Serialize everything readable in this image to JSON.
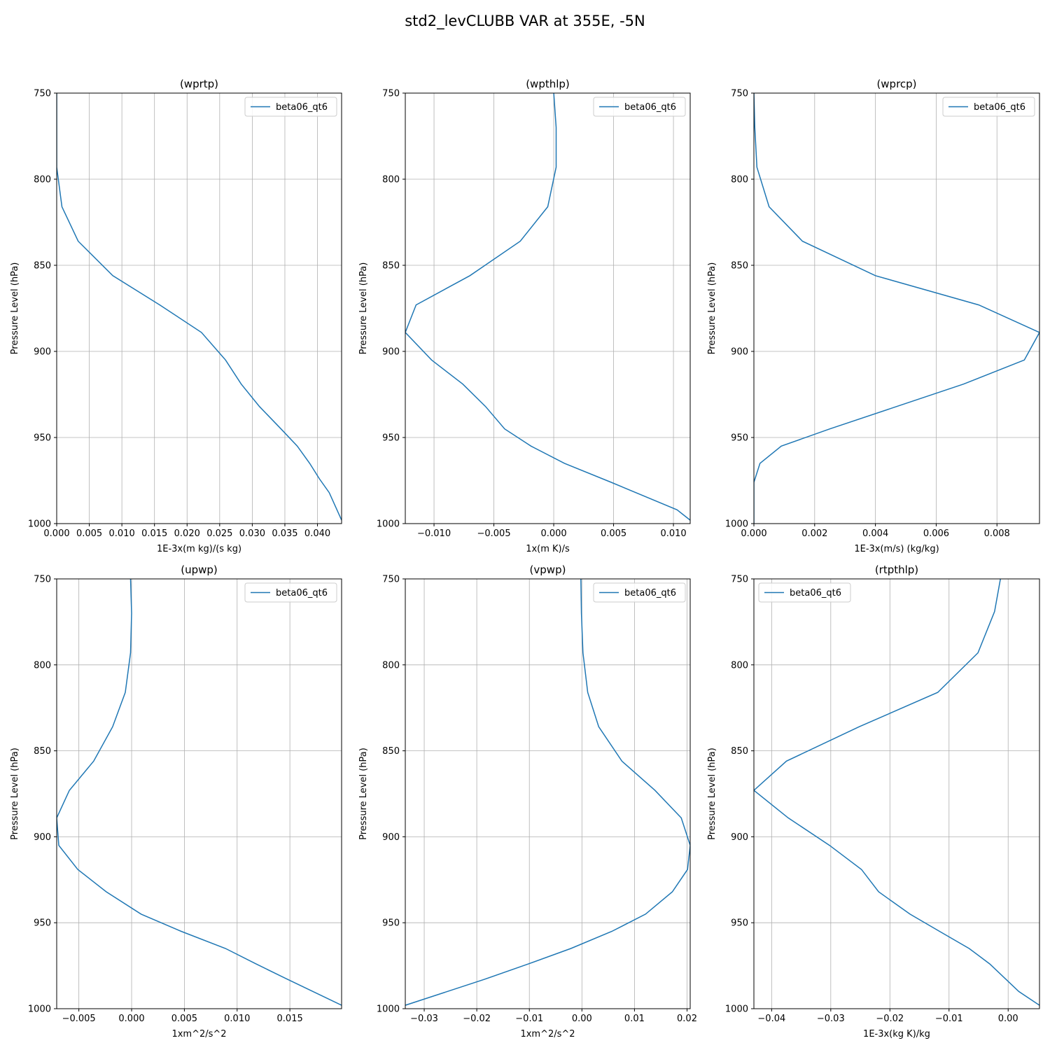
{
  "figure": {
    "title": "std2_levCLUBB VAR at 355E, -5N",
    "series_color": "#1f77b4"
  },
  "chart_data": [
    {
      "type": "line",
      "title": "(wprtp)",
      "xlabel": "1E-3x(m kg)/(s kg)",
      "ylabel": "Pressure Level (hPa)",
      "xlim": [
        0,
        0.0437
      ],
      "ylim": [
        1000,
        750
      ],
      "y_inverted": true,
      "grid": true,
      "legend_position": "upper right",
      "xticks": [
        0,
        0.005,
        0.01,
        0.015,
        0.02,
        0.025,
        0.03,
        0.035,
        0.04
      ],
      "xtick_labels": [
        "0.000",
        "0.005",
        "0.010",
        "0.015",
        "0.020",
        "0.025",
        "0.030",
        "0.035",
        "0.040"
      ],
      "yticks": [
        750,
        800,
        850,
        900,
        950,
        1000
      ],
      "ytick_labels": [
        "750",
        "800",
        "850",
        "900",
        "950",
        "1000"
      ],
      "series": [
        {
          "name": "beta06_qt6",
          "points": [
            [
              0,
              750
            ],
            [
              0,
              770
            ],
            [
              0,
              793
            ],
            [
              0.0008,
              816
            ],
            [
              0.0033,
              836
            ],
            [
              0.0086,
              856
            ],
            [
              0.0158,
              873
            ],
            [
              0.0222,
              889
            ],
            [
              0.0259,
              905
            ],
            [
              0.0283,
              919
            ],
            [
              0.0311,
              932
            ],
            [
              0.0344,
              945
            ],
            [
              0.0369,
              955
            ],
            [
              0.0388,
              965
            ],
            [
              0.0403,
              974
            ],
            [
              0.0418,
              982
            ],
            [
              0.0437,
              998
            ]
          ]
        }
      ]
    },
    {
      "type": "line",
      "title": "(wpthlp)",
      "xlabel": "1x(m K)/s",
      "ylabel": "Pressure Level (hPa)",
      "xlim": [
        -0.0124,
        0.0114
      ],
      "ylim": [
        1000,
        750
      ],
      "y_inverted": true,
      "grid": true,
      "legend_position": "upper right",
      "xticks": [
        -0.01,
        -0.005,
        0,
        0.005,
        0.01
      ],
      "xtick_labels": [
        "−0.010",
        "−0.005",
        "0.000",
        "0.005",
        "0.010"
      ],
      "yticks": [
        750,
        800,
        850,
        900,
        950,
        1000
      ],
      "ytick_labels": [
        "750",
        "800",
        "850",
        "900",
        "950",
        "1000"
      ],
      "series": [
        {
          "name": "beta06_qt6",
          "points": [
            [
              0,
              750
            ],
            [
              0.0002,
              770
            ],
            [
              0.0002,
              793
            ],
            [
              -0.0005,
              816
            ],
            [
              -0.0028,
              836
            ],
            [
              -0.007,
              856
            ],
            [
              -0.0115,
              873
            ],
            [
              -0.0124,
              889
            ],
            [
              -0.0102,
              905
            ],
            [
              -0.0076,
              919
            ],
            [
              -0.0057,
              932
            ],
            [
              -0.0041,
              945
            ],
            [
              -0.0019,
              955
            ],
            [
              0.0009,
              965
            ],
            [
              0.0048,
              976
            ],
            [
              0.0103,
              992
            ],
            [
              0.0114,
              998
            ]
          ]
        }
      ]
    },
    {
      "type": "line",
      "title": "(wprcp)",
      "xlabel": "1E-3x(m/s) (kg/kg)",
      "ylabel": "Pressure Level (hPa)",
      "xlim": [
        0,
        0.0094
      ],
      "ylim": [
        1000,
        750
      ],
      "y_inverted": true,
      "grid": true,
      "legend_position": "upper right",
      "xticks": [
        0,
        0.002,
        0.004,
        0.006,
        0.008
      ],
      "xtick_labels": [
        "0.000",
        "0.002",
        "0.004",
        "0.006",
        "0.008"
      ],
      "yticks": [
        750,
        800,
        850,
        900,
        950,
        1000
      ],
      "ytick_labels": [
        "750",
        "800",
        "850",
        "900",
        "950",
        "1000"
      ],
      "series": [
        {
          "name": "beta06_qt6",
          "points": [
            [
              0,
              750
            ],
            [
              3e-05,
              770
            ],
            [
              0.0001,
              793
            ],
            [
              0.0005,
              816
            ],
            [
              0.0016,
              836
            ],
            [
              0.004,
              856
            ],
            [
              0.0074,
              873
            ],
            [
              0.0094,
              889
            ],
            [
              0.0089,
              905
            ],
            [
              0.0069,
              919
            ],
            [
              0.0047,
              932
            ],
            [
              0.0025,
              945
            ],
            [
              0.0009,
              955
            ],
            [
              0.0002,
              965
            ],
            [
              0,
              976
            ],
            [
              0,
              1000
            ]
          ]
        }
      ]
    },
    {
      "type": "line",
      "title": "(upwp)",
      "xlabel": "1xm^2/s^2",
      "ylabel": "Pressure Level (hPa)",
      "xlim": [
        -0.0071,
        0.0199
      ],
      "ylim": [
        1000,
        750
      ],
      "y_inverted": true,
      "grid": true,
      "legend_position": "upper right",
      "xticks": [
        -0.005,
        0,
        0.005,
        0.01,
        0.015
      ],
      "xtick_labels": [
        "−0.005",
        "0.000",
        "0.005",
        "0.010",
        "0.015"
      ],
      "yticks": [
        750,
        800,
        850,
        900,
        950,
        1000
      ],
      "ytick_labels": [
        "750",
        "800",
        "850",
        "900",
        "950",
        "1000"
      ],
      "series": [
        {
          "name": "beta06_qt6",
          "points": [
            [
              -0.0001,
              750
            ],
            [
              0,
              770
            ],
            [
              -0.0001,
              793
            ],
            [
              -0.0006,
              816
            ],
            [
              -0.0018,
              836
            ],
            [
              -0.0036,
              856
            ],
            [
              -0.0059,
              873
            ],
            [
              -0.0071,
              889
            ],
            [
              -0.0069,
              905
            ],
            [
              -0.0051,
              919
            ],
            [
              -0.0024,
              932
            ],
            [
              0.0009,
              945
            ],
            [
              0.0047,
              955
            ],
            [
              0.0089,
              965
            ],
            [
              0.0118,
              974
            ],
            [
              0.0148,
              983
            ],
            [
              0.0199,
              998
            ]
          ]
        }
      ]
    },
    {
      "type": "line",
      "title": "(vpwp)",
      "xlabel": "1xm^2/s^2",
      "ylabel": "Pressure Level (hPa)",
      "xlim": [
        -0.0336,
        0.0206
      ],
      "ylim": [
        1000,
        750
      ],
      "y_inverted": true,
      "grid": true,
      "legend_position": "upper right",
      "xticks": [
        -0.03,
        -0.02,
        -0.01,
        0,
        0.01,
        0.02
      ],
      "xtick_labels": [
        "−0.03",
        "−0.02",
        "−0.01",
        "0.00",
        "0.01",
        "0.02"
      ],
      "yticks": [
        750,
        800,
        850,
        900,
        950,
        1000
      ],
      "ytick_labels": [
        "750",
        "800",
        "850",
        "900",
        "950",
        "1000"
      ],
      "series": [
        {
          "name": "beta06_qt6",
          "points": [
            [
              -0.0002,
              750
            ],
            [
              -0.0001,
              770
            ],
            [
              0.0002,
              793
            ],
            [
              0.0011,
              816
            ],
            [
              0.0032,
              836
            ],
            [
              0.0076,
              856
            ],
            [
              0.0139,
              873
            ],
            [
              0.0189,
              889
            ],
            [
              0.0206,
              905
            ],
            [
              0.0201,
              919
            ],
            [
              0.0172,
              932
            ],
            [
              0.0121,
              945
            ],
            [
              0.0057,
              955
            ],
            [
              -0.0021,
              965
            ],
            [
              -0.0102,
              974
            ],
            [
              -0.0186,
              983
            ],
            [
              -0.0336,
              998
            ]
          ]
        }
      ]
    },
    {
      "type": "line",
      "title": "(rtpthlp)",
      "xlabel": "1E-3x(kg K)/kg",
      "ylabel": "Pressure Level (hPa)",
      "xlim": [
        -0.043,
        0.0053
      ],
      "ylim": [
        1000,
        750
      ],
      "y_inverted": true,
      "grid": true,
      "legend_position": "upper left",
      "xticks": [
        -0.04,
        -0.03,
        -0.02,
        -0.01,
        0
      ],
      "xtick_labels": [
        "−0.04",
        "−0.03",
        "−0.02",
        "−0.01",
        "0.00"
      ],
      "yticks": [
        750,
        800,
        850,
        900,
        950,
        1000
      ],
      "ytick_labels": [
        "750",
        "800",
        "850",
        "900",
        "950",
        "1000"
      ],
      "series": [
        {
          "name": "beta06_qt6",
          "points": [
            [
              -0.0013,
              750
            ],
            [
              -0.0023,
              769
            ],
            [
              -0.0051,
              793
            ],
            [
              -0.0119,
              816
            ],
            [
              -0.0252,
              836
            ],
            [
              -0.0375,
              856
            ],
            [
              -0.043,
              873
            ],
            [
              -0.0372,
              889
            ],
            [
              -0.0302,
              905
            ],
            [
              -0.0248,
              919
            ],
            [
              -0.0219,
              932
            ],
            [
              -0.0166,
              945
            ],
            [
              -0.0116,
              955
            ],
            [
              -0.0066,
              965
            ],
            [
              -0.0031,
              974
            ],
            [
              0.0018,
              990
            ],
            [
              0.0053,
              998
            ]
          ]
        }
      ]
    }
  ]
}
